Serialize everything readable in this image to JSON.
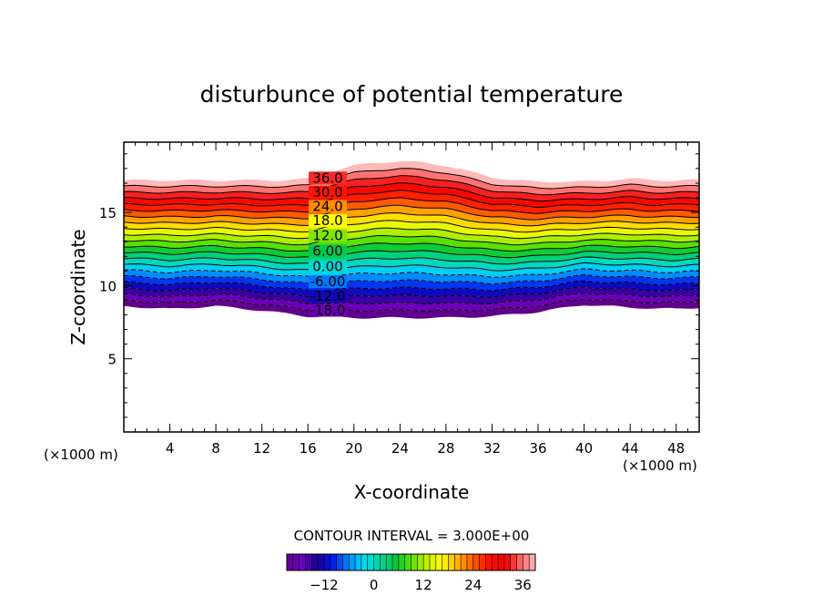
{
  "chart_data": {
    "type": "contour",
    "title": "disturbunce of potential temperature",
    "xlabel": "X-coordinate",
    "ylabel": "Z-coordinate",
    "x_unit_left": "(×1000 m)",
    "x_unit_right": "(×1000 m)",
    "xlim": [
      0,
      50
    ],
    "ylim": [
      0,
      19.8
    ],
    "x_ticks": [
      4,
      8,
      12,
      16,
      20,
      24,
      28,
      32,
      36,
      40,
      44,
      48
    ],
    "y_ticks": [
      5,
      10,
      15
    ],
    "x_tick_labels": [
      "4",
      "8",
      "12",
      "16",
      "20",
      "24",
      "28",
      "32",
      "36",
      "40",
      "44",
      "48"
    ],
    "y_tick_labels": [
      "5",
      "10",
      "15"
    ],
    "contour_levels": [
      -21,
      -18,
      -15,
      -12,
      -9,
      -6,
      -3,
      0,
      3,
      6,
      9,
      12,
      15,
      18,
      21,
      24,
      27,
      30,
      33,
      36,
      39,
      42
    ],
    "contour_labels": [
      {
        "text": "-18.0",
        "value": -18
      },
      {
        "text": "-12.0",
        "value": -12
      },
      {
        "text": "-6.00",
        "value": -6
      },
      {
        "text": "0.00",
        "value": 0
      },
      {
        "text": "6.00",
        "value": 6
      },
      {
        "text": "12.0",
        "value": 12
      },
      {
        "text": "18.0",
        "value": 18
      },
      {
        "text": "24.0",
        "value": 24
      },
      {
        "text": "30.0",
        "value": 30
      },
      {
        "text": "36.0",
        "value": 36
      }
    ],
    "field_top_edge": {
      "x": [
        0,
        10,
        14,
        16,
        18,
        20,
        22,
        24,
        26,
        28,
        30,
        32,
        34,
        36,
        40,
        44,
        46,
        50
      ],
      "z": [
        17.2,
        17.2,
        17.2,
        17.3,
        17.8,
        18.2,
        18.4,
        18.5,
        18.4,
        18.2,
        17.8,
        17.4,
        17.2,
        17.1,
        17.1,
        17.3,
        17.2,
        17.2
      ]
    },
    "field_bottom_edge": {
      "x": [
        0,
        4,
        8,
        12,
        16,
        20,
        24,
        28,
        32,
        36,
        40,
        44,
        48,
        50
      ],
      "z": [
        8.6,
        8.4,
        8.6,
        8.3,
        7.9,
        7.8,
        7.8,
        7.8,
        7.9,
        8.2,
        8.7,
        8.5,
        8.4,
        8.5
      ]
    },
    "colorbar": {
      "label": "CONTOUR INTERVAL = 3.000E+00",
      "ticks": [
        -12,
        0,
        12,
        24,
        36
      ],
      "tick_labels": [
        "−12",
        "0",
        "12",
        "24",
        "36"
      ],
      "range": [
        -21,
        39
      ]
    }
  }
}
